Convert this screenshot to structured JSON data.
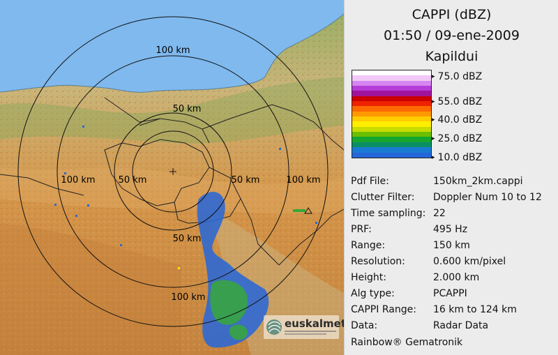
{
  "panel": {
    "title": "CAPPI (dBZ)",
    "datetime": "01:50 / 09-ene-2009",
    "site": "Kapildui"
  },
  "legend": {
    "colors": [
      "#ffffff",
      "#f2c8f7",
      "#d686f0",
      "#b63cd8",
      "#a0149c",
      "#cc0000",
      "#ee2200",
      "#ff6a00",
      "#ff9900",
      "#ffcc00",
      "#ffee00",
      "#c8dc00",
      "#6cbf00",
      "#16a62e",
      "#0a8f64",
      "#1a7ad2",
      "#2566d8"
    ],
    "ticks": [
      "75.0 dBZ",
      "55.0 dBZ",
      "40.0 dBZ",
      "25.0 dBZ",
      "10.0 dBZ"
    ]
  },
  "info": [
    {
      "key": "Pdf File:",
      "value": "150km_2km.cappi"
    },
    {
      "key": "Clutter Filter:",
      "value": "Doppler Num 10 to 12"
    },
    {
      "key": "Time sampling:",
      "value": "22"
    },
    {
      "key": "PRF:",
      "value": "495 Hz"
    },
    {
      "key": "Range:",
      "value": "150 km"
    },
    {
      "key": "Resolution:",
      "value": "0.600 km/pixel"
    },
    {
      "key": "Height:",
      "value": "2.000 km"
    },
    {
      "key": "Alg type:",
      "value": "PCAPPI"
    },
    {
      "key": "CAPPI Range:",
      "value": "16 km to 124 km"
    },
    {
      "key": "Data:",
      "value": "Radar Data"
    }
  ],
  "credit": "Rainbow® Gematronik",
  "map": {
    "range_labels": {
      "top_100": "100 km",
      "top_50": "50 km",
      "left_100": "100 km",
      "left_50": "50 km",
      "right_50": "50 km",
      "right_100": "100 km",
      "bottom_50": "50 km",
      "bottom_100": "100 km"
    },
    "logo": "euskalmet",
    "colors": {
      "sea": "#7fb9ee",
      "low": "#c8ba84",
      "mid": "#d89a52",
      "high": "#b97a3c",
      "green": "#7ca352",
      "echo_blue": "#2a68d6",
      "echo_green": "#36a83a"
    }
  }
}
